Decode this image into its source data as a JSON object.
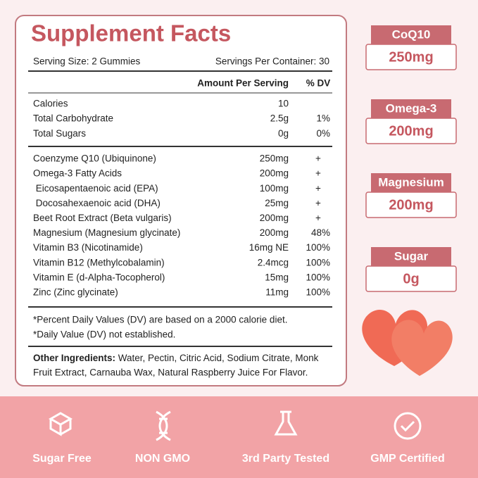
{
  "facts": {
    "title": "Supplement Facts",
    "serving_size": "Serving Size: 2 Gummies",
    "servings_per_container": "Servings Per Container: 30",
    "header_amount": "Amount Per Serving",
    "header_dv": "% DV",
    "groups": [
      [
        {
          "name": "Calories",
          "amount": "10",
          "dv": ""
        },
        {
          "name": "Total Carbohydrate",
          "amount": "2.5g",
          "dv": "1%"
        },
        {
          "name": "Total Sugars",
          "amount": "0g",
          "dv": "0%"
        }
      ],
      [
        {
          "name": "Coenzyme Q10 (Ubiquinone)",
          "amount": "250mg",
          "dv": "+"
        },
        {
          "name": "Omega-3 Fatty Acids",
          "amount": "200mg",
          "dv": "+"
        },
        {
          "name": " Eicosapentaenoic acid (EPA)",
          "amount": "100mg",
          "dv": "+"
        },
        {
          "name": " Docosahexaenoic acid (DHA)",
          "amount": "25mg",
          "dv": "+"
        },
        {
          "name": "Beet Root Extract (Beta vulgaris)",
          "amount": "200mg",
          "dv": "+"
        },
        {
          "name": "Magnesium (Magnesium glycinate)",
          "amount": "200mg",
          "dv": "48%"
        },
        {
          "name": "Vitamin B3 (Nicotinamide)",
          "amount": "16mg NE",
          "dv": "100%"
        },
        {
          "name": "Vitamin B12 (Methylcobalamin)",
          "amount": "2.4mcg",
          "dv": "100%"
        },
        {
          "name": "Vitamin E (d-Alpha-Tocopherol)",
          "amount": "15mg",
          "dv": "100%"
        },
        {
          "name": "Zinc (Zinc glycinate)",
          "amount": "11mg",
          "dv": "100%"
        }
      ]
    ],
    "footnotes": [
      "*Percent Daily Values (DV) are based on a 2000 calorie diet.",
      "*Daily Value (DV) not established."
    ],
    "other_label": "Other Ingredients:",
    "other_lines": [
      " Water, Pectin, Citric Acid, Sodium Citrate, Monk",
      "Fruit Extract, Carnauba Wax, Natural Raspberry Juice For Flavor."
    ]
  },
  "badges": [
    {
      "label": "CoQ10",
      "value": "250mg"
    },
    {
      "label": "Omega-3",
      "value": "200mg"
    },
    {
      "label": "Magnesium",
      "value": "200mg"
    },
    {
      "label": "Sugar",
      "value": "0g"
    }
  ],
  "features": [
    "Sugar Free",
    "NON GMO",
    "3rd Party Tested",
    "GMP Certified"
  ]
}
